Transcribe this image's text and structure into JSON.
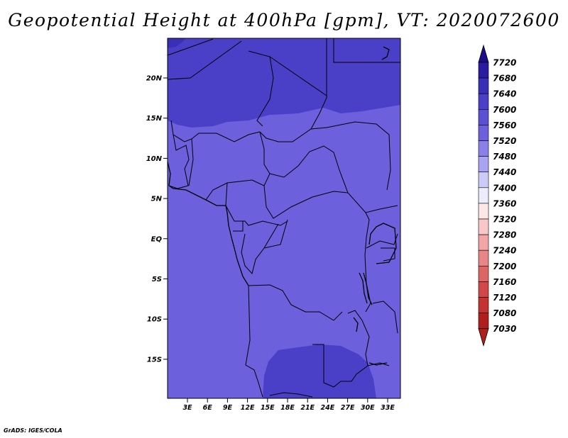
{
  "title": "Geopotential Height at 400hPa [gpm], VT: 2020072600",
  "credit": "GrADS: IGES/COLA",
  "lat_labels": [
    "20N",
    "15N",
    "10N",
    "5N",
    "EQ",
    "5S",
    "10S",
    "15S"
  ],
  "lon_labels": [
    "3E",
    "6E",
    "9E",
    "12E",
    "15E",
    "18E",
    "21E",
    "24E",
    "27E",
    "30E",
    "33E"
  ],
  "legend": {
    "levels": [
      "7720",
      "7680",
      "7640",
      "7600",
      "7560",
      "7520",
      "7480",
      "7440",
      "7400",
      "7360",
      "7320",
      "7280",
      "7240",
      "7200",
      "7160",
      "7120",
      "7080",
      "7030"
    ],
    "colors": [
      "#1d0c8a",
      "#2a1ba0",
      "#3a30b8",
      "#4a40c8",
      "#5b50d4",
      "#6c60dc",
      "#8a80e8",
      "#aaa4f0",
      "#cccaf6",
      "#ececfc",
      "#fde8e8",
      "#f8c8c8",
      "#f0a6a6",
      "#e68686",
      "#dc6666",
      "#d24848",
      "#c43232",
      "#b01e1e"
    ]
  },
  "field_colors": {
    "low": "#6c60dc",
    "high": "#4a40c8"
  }
}
